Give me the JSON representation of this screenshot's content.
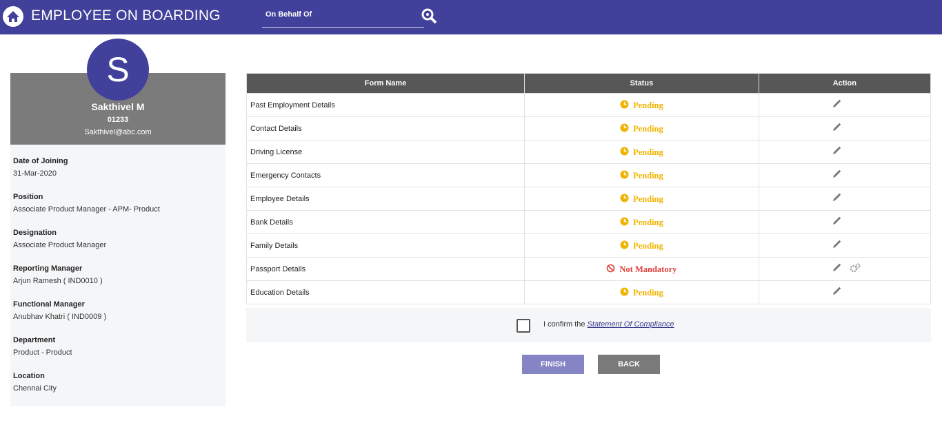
{
  "header": {
    "title": "EMPLOYEE ON BOARDING",
    "search_placeholder": "On Behalf Of"
  },
  "profile": {
    "initial": "S",
    "name": "Sakthivel M",
    "id": "01233",
    "email": "Sakthivel@abc.com",
    "fields": [
      {
        "label": "Date of Joining",
        "value": "31-Mar-2020"
      },
      {
        "label": "Position",
        "value": "Associate Product Manager - APM- Product"
      },
      {
        "label": "Designation",
        "value": "Associate Product Manager"
      },
      {
        "label": "Reporting Manager",
        "value": "Arjun Ramesh ( IND0010 )"
      },
      {
        "label": "Functional Manager",
        "value": "Anubhav Khatri ( IND0009 )"
      },
      {
        "label": "Department",
        "value": "Product - Product"
      },
      {
        "label": "Location",
        "value": "Chennai City"
      }
    ]
  },
  "table": {
    "columns": [
      "Form Name",
      "Status",
      "Action"
    ],
    "rows": [
      {
        "form": "Past Employment Details",
        "status": "Pending",
        "status_color": "#f0b400",
        "status_icon": "clock",
        "actions": [
          "edit"
        ]
      },
      {
        "form": "Contact Details",
        "status": "Pending",
        "status_color": "#f0b400",
        "status_icon": "clock",
        "actions": [
          "edit"
        ]
      },
      {
        "form": "Driving License",
        "status": "Pending",
        "status_color": "#f0b400",
        "status_icon": "clock",
        "actions": [
          "edit"
        ]
      },
      {
        "form": "Emergency Contacts",
        "status": "Pending",
        "status_color": "#f0b400",
        "status_icon": "clock",
        "actions": [
          "edit"
        ]
      },
      {
        "form": "Employee Details",
        "status": "Pending",
        "status_color": "#f0b400",
        "status_icon": "clock",
        "actions": [
          "edit"
        ]
      },
      {
        "form": "Bank Details",
        "status": "Pending",
        "status_color": "#f0b400",
        "status_icon": "clock",
        "actions": [
          "edit"
        ]
      },
      {
        "form": "Family Details",
        "status": "Pending",
        "status_color": "#f0b400",
        "status_icon": "clock",
        "actions": [
          "edit"
        ]
      },
      {
        "form": "Passport Details",
        "status": "Not Mandatory",
        "status_color": "#e0403a",
        "status_icon": "ban",
        "actions": [
          "edit",
          "settings"
        ]
      },
      {
        "form": "Education Details",
        "status": "Pending",
        "status_color": "#f0b400",
        "status_icon": "clock",
        "actions": [
          "edit"
        ]
      }
    ]
  },
  "compliance": {
    "text": "I confirm the",
    "link": "Statement Of Compliance"
  },
  "buttons": [
    "FINISH",
    "BACK"
  ]
}
